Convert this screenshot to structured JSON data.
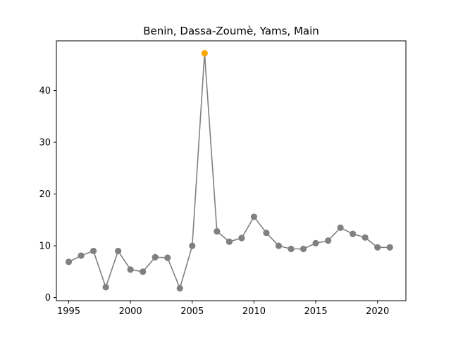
{
  "chart_data": {
    "type": "line",
    "title": "Benin, Dassa-Zoumè, Yams, Main",
    "xlabel": "",
    "ylabel": "",
    "xlim": [
      1994.0,
      2022.3
    ],
    "ylim": [
      -0.6,
      49.6
    ],
    "xticks": [
      1995,
      2000,
      2005,
      2010,
      2015,
      2020
    ],
    "yticks": [
      0,
      10,
      20,
      30,
      40
    ],
    "grid": false,
    "legend": "none",
    "series": [
      {
        "color": "#808080",
        "marker": "circle",
        "x": [
          1995,
          1996,
          1997,
          1998,
          1999,
          2000,
          2001,
          2002,
          2003,
          2004,
          2005,
          2006,
          2007,
          2008,
          2009,
          2010,
          2011,
          2012,
          2013,
          2014,
          2015,
          2016,
          2017,
          2018,
          2019,
          2020,
          2021
        ],
        "y": [
          6.9,
          8.1,
          9.0,
          2.0,
          9.0,
          5.4,
          5.0,
          7.8,
          7.7,
          1.8,
          10.0,
          47.2,
          12.8,
          10.8,
          11.5,
          15.6,
          12.5,
          10.0,
          9.4,
          9.4,
          10.5,
          11.0,
          13.5,
          12.3,
          11.6,
          9.7,
          9.7
        ]
      }
    ],
    "highlight": {
      "x": 2006,
      "y": 47.2,
      "color": "#ffa500"
    }
  }
}
